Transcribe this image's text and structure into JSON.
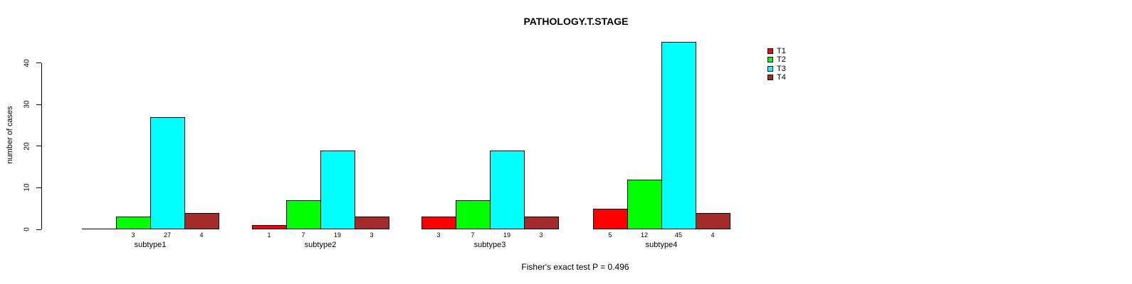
{
  "chart_data": {
    "type": "bar",
    "grouped": true,
    "title": "PATHOLOGY.T.STAGE",
    "xlabel": "",
    "ylabel": "number of cases",
    "footer": "Fisher's exact test P = 0.496",
    "categories": [
      "subtype1",
      "subtype2",
      "subtype3",
      "subtype4"
    ],
    "series": [
      {
        "name": "T1",
        "color": "#FF0000",
        "values": [
          0,
          1,
          3,
          5
        ]
      },
      {
        "name": "T2",
        "color": "#00FF00",
        "values": [
          3,
          7,
          7,
          12
        ]
      },
      {
        "name": "T3",
        "color": "#00FFFF",
        "values": [
          27,
          19,
          19,
          45
        ]
      },
      {
        "name": "T4",
        "color": "#A52A2A",
        "values": [
          4,
          3,
          3,
          4
        ]
      }
    ],
    "bar_labels_by_category": [
      [
        "",
        "3",
        "27",
        "4"
      ],
      [
        "1",
        "7",
        "19",
        "3"
      ],
      [
        "3",
        "7",
        "19",
        "3"
      ],
      [
        "5",
        "12",
        "45",
        "4"
      ]
    ],
    "yticks": [
      0,
      10,
      20,
      30,
      40
    ],
    "ylim": [
      0,
      45
    ],
    "grid": false,
    "legend": {
      "position": "top-right",
      "entries": [
        "T1",
        "T2",
        "T3",
        "T4"
      ]
    }
  }
}
